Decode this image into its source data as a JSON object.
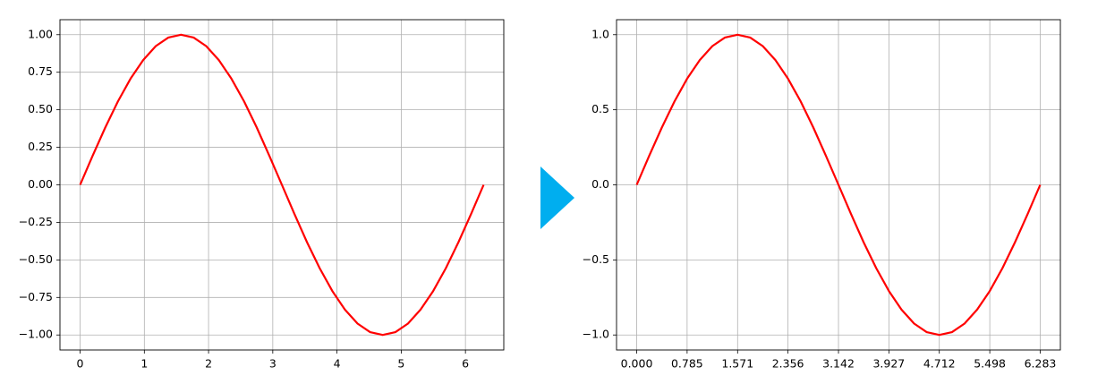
{
  "chart_data": [
    {
      "type": "line",
      "x": [
        0,
        0.196,
        0.393,
        0.589,
        0.785,
        0.982,
        1.178,
        1.374,
        1.571,
        1.767,
        1.963,
        2.16,
        2.356,
        2.553,
        2.749,
        2.945,
        3.142,
        3.338,
        3.534,
        3.731,
        3.927,
        4.123,
        4.32,
        4.516,
        4.712,
        4.909,
        5.105,
        5.301,
        5.498,
        5.694,
        5.89,
        6.087,
        6.283
      ],
      "values": [
        0,
        0.195,
        0.383,
        0.556,
        0.707,
        0.831,
        0.924,
        0.981,
        1,
        0.981,
        0.924,
        0.831,
        0.707,
        0.556,
        0.383,
        0.195,
        0,
        -0.195,
        -0.383,
        -0.556,
        -0.707,
        -0.831,
        -0.924,
        -0.981,
        -1,
        -0.981,
        -0.924,
        -0.831,
        -0.707,
        -0.556,
        -0.383,
        -0.195,
        0
      ],
      "color": "#ff0000",
      "xlim": [
        -0.314,
        6.597
      ],
      "ylim": [
        -1.1,
        1.1
      ],
      "xticks": [
        0,
        1,
        2,
        3,
        4,
        5,
        6
      ],
      "yticks": [
        {
          "value": -1,
          "label": "−1.00"
        },
        {
          "value": -0.75,
          "label": "−0.75"
        },
        {
          "value": -0.5,
          "label": "−0.50"
        },
        {
          "value": -0.25,
          "label": "−0.25"
        },
        {
          "value": 0,
          "label": "0.00"
        },
        {
          "value": 0.25,
          "label": "0.25"
        },
        {
          "value": 0.5,
          "label": "0.50"
        },
        {
          "value": 0.75,
          "label": "0.75"
        },
        {
          "value": 1,
          "label": "1.00"
        }
      ],
      "grid": true
    },
    {
      "type": "line",
      "x": [
        0,
        0.196,
        0.393,
        0.589,
        0.785,
        0.982,
        1.178,
        1.374,
        1.571,
        1.767,
        1.963,
        2.16,
        2.356,
        2.553,
        2.749,
        2.945,
        3.142,
        3.338,
        3.534,
        3.731,
        3.927,
        4.123,
        4.32,
        4.516,
        4.712,
        4.909,
        5.105,
        5.301,
        5.498,
        5.694,
        5.89,
        6.087,
        6.283
      ],
      "values": [
        0,
        0.195,
        0.383,
        0.556,
        0.707,
        0.831,
        0.924,
        0.981,
        1,
        0.981,
        0.924,
        0.831,
        0.707,
        0.556,
        0.383,
        0.195,
        0,
        -0.195,
        -0.383,
        -0.556,
        -0.707,
        -0.831,
        -0.924,
        -0.981,
        -1,
        -0.981,
        -0.924,
        -0.831,
        -0.707,
        -0.556,
        -0.383,
        -0.195,
        0
      ],
      "color": "#ff0000",
      "xlim": [
        -0.314,
        6.597
      ],
      "ylim": [
        -1.1,
        1.1
      ],
      "xticks": [
        {
          "value": 0,
          "label": "0.000"
        },
        0.785,
        1.571,
        2.356,
        3.142,
        3.927,
        4.712,
        5.498,
        6.283
      ],
      "yticks": [
        {
          "value": -1,
          "label": "−1.0"
        },
        {
          "value": -0.5,
          "label": "−0.5"
        },
        {
          "value": 0,
          "label": "0.0"
        },
        0.5,
        {
          "value": 1,
          "label": "1.0"
        }
      ],
      "grid": true
    }
  ]
}
